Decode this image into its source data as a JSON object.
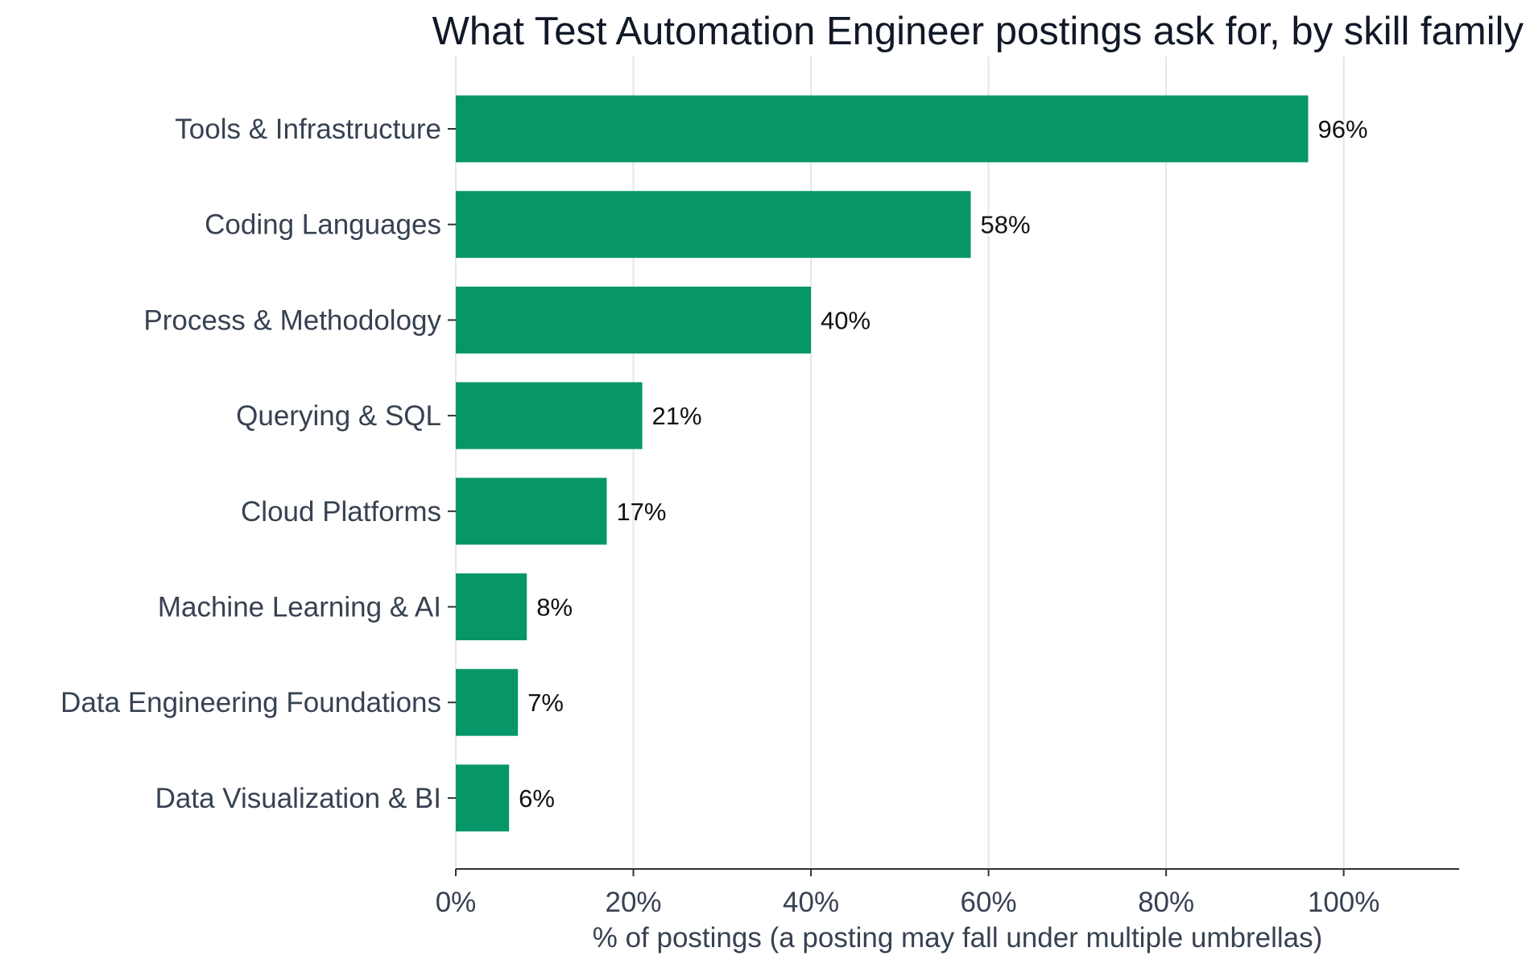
{
  "chart_data": {
    "type": "bar",
    "orientation": "horizontal",
    "title": "What Test Automation Engineer postings ask for, by skill family",
    "xlabel": "% of postings (a posting may fall under multiple umbrellas)",
    "ylabel": "",
    "categories": [
      "Tools & Infrastructure",
      "Coding Languages",
      "Process & Methodology",
      "Querying & SQL",
      "Cloud Platforms",
      "Machine Learning & AI",
      "Data Engineering Foundations",
      "Data Visualization & BI"
    ],
    "values": [
      96,
      58,
      40,
      21,
      17,
      8,
      7,
      6
    ],
    "value_labels": [
      "96%",
      "58%",
      "40%",
      "21%",
      "17%",
      "8%",
      "7%",
      "6%"
    ],
    "xlim": [
      0,
      113
    ],
    "xticks": [
      0,
      20,
      40,
      60,
      80,
      100
    ],
    "xtick_labels": [
      "0%",
      "20%",
      "40%",
      "60%",
      "80%",
      "100%"
    ],
    "bar_color": "#069668",
    "grid": "vertical",
    "legend": "none"
  }
}
